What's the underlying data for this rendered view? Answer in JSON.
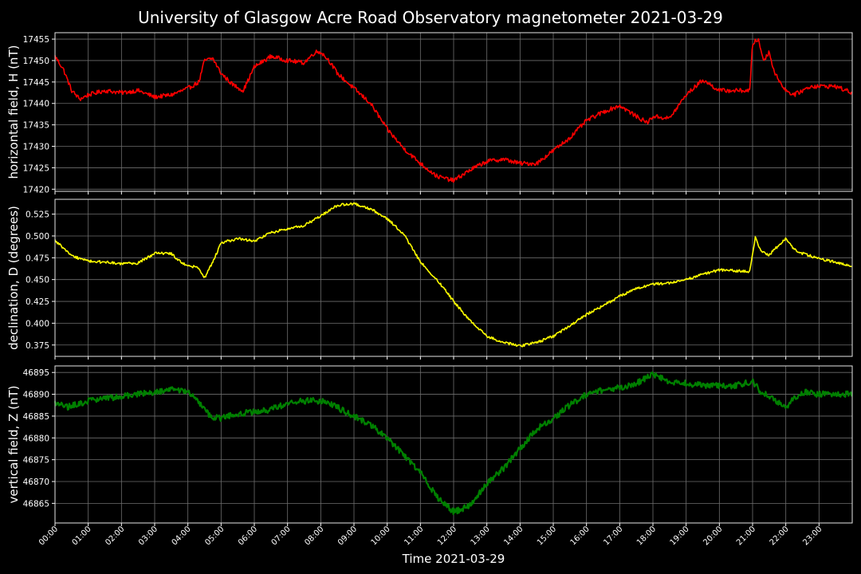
{
  "chart_data": {
    "title": "University of Glasgow Acre Road Observatory magnetometer 2021-03-29",
    "xlabel": "Time 2021-03-29",
    "x_ticks": [
      "00:00",
      "01:00",
      "02:00",
      "03:00",
      "04:00",
      "05:00",
      "06:00",
      "07:00",
      "08:00",
      "09:00",
      "10:00",
      "11:00",
      "12:00",
      "13:00",
      "14:00",
      "15:00",
      "16:00",
      "17:00",
      "18:00",
      "19:00",
      "20:00",
      "21:00",
      "22:00",
      "23:00"
    ],
    "xlim": [
      "00:00",
      "24:00"
    ],
    "grid": true,
    "panels": [
      {
        "type": "line",
        "ylabel": "horizontal field, H (nT)",
        "color": "#ff0000",
        "ylim": [
          17419.5,
          17456.5
        ],
        "yticks": [
          17420,
          17425,
          17430,
          17435,
          17440,
          17445,
          17450,
          17455
        ],
        "noise": 0.5,
        "x": [
          "00:00",
          "00:15",
          "00:30",
          "00:45",
          "01:00",
          "01:30",
          "02:00",
          "02:30",
          "03:00",
          "03:30",
          "04:00",
          "04:20",
          "04:30",
          "04:45",
          "05:00",
          "05:20",
          "05:40",
          "06:00",
          "06:30",
          "07:00",
          "07:30",
          "07:50",
          "08:00",
          "08:15",
          "08:30",
          "09:00",
          "09:30",
          "10:00",
          "10:30",
          "11:00",
          "11:30",
          "12:00",
          "12:30",
          "13:00",
          "13:30",
          "14:00",
          "14:30",
          "15:00",
          "15:30",
          "16:00",
          "16:30",
          "17:00",
          "17:30",
          "17:50",
          "18:00",
          "18:30",
          "19:00",
          "19:30",
          "20:00",
          "20:30",
          "20:55",
          "21:00",
          "21:10",
          "21:20",
          "21:30",
          "21:40",
          "22:00",
          "22:15",
          "22:30",
          "22:45",
          "23:00",
          "23:30",
          "23:59"
        ],
        "y": [
          17451,
          17448,
          17443,
          17441,
          17442,
          17443,
          17442.5,
          17443,
          17441.5,
          17442,
          17443.5,
          17445,
          17450,
          17450.5,
          17447,
          17444.5,
          17443,
          17448.5,
          17451,
          17450,
          17449.5,
          17452,
          17452,
          17450,
          17447,
          17443.5,
          17440,
          17434,
          17429.5,
          17426,
          17423,
          17422,
          17424.5,
          17426.5,
          17427,
          17426,
          17426,
          17429,
          17432,
          17436,
          17438,
          17439.5,
          17437,
          17435.5,
          17437,
          17436.5,
          17442,
          17445.5,
          17443,
          17443,
          17443,
          17454,
          17455,
          17450,
          17452,
          17447,
          17443,
          17442,
          17443,
          17444,
          17444,
          17444,
          17442.5
        ]
      },
      {
        "type": "line",
        "ylabel": "declination, D (degrees)",
        "color": "#ffff00",
        "ylim": [
          0.362,
          0.542
        ],
        "yticks": [
          0.375,
          0.4,
          0.425,
          0.45,
          0.475,
          0.5,
          0.525
        ],
        "noise": 0.0015,
        "x": [
          "00:00",
          "00:30",
          "01:00",
          "01:30",
          "02:00",
          "02:30",
          "03:00",
          "03:30",
          "03:45",
          "04:00",
          "04:15",
          "04:20",
          "04:30",
          "04:45",
          "05:00",
          "05:30",
          "06:00",
          "06:30",
          "07:00",
          "07:30",
          "08:00",
          "08:30",
          "09:00",
          "09:30",
          "10:00",
          "10:30",
          "11:00",
          "11:30",
          "12:00",
          "12:30",
          "13:00",
          "13:30",
          "14:00",
          "14:30",
          "15:00",
          "15:30",
          "16:00",
          "16:30",
          "17:00",
          "17:30",
          "18:00",
          "18:30",
          "19:00",
          "19:30",
          "20:00",
          "20:30",
          "20:55",
          "21:05",
          "21:15",
          "21:30",
          "21:45",
          "22:00",
          "22:15",
          "22:30",
          "23:00",
          "23:30",
          "23:59"
        ],
        "y": [
          0.495,
          0.477,
          0.471,
          0.47,
          0.468,
          0.469,
          0.48,
          0.48,
          0.471,
          0.465,
          0.465,
          0.462,
          0.452,
          0.47,
          0.492,
          0.497,
          0.494,
          0.504,
          0.508,
          0.512,
          0.523,
          0.535,
          0.537,
          0.531,
          0.52,
          0.502,
          0.47,
          0.45,
          0.425,
          0.403,
          0.385,
          0.378,
          0.374,
          0.378,
          0.385,
          0.397,
          0.41,
          0.42,
          0.431,
          0.44,
          0.445,
          0.446,
          0.45,
          0.456,
          0.461,
          0.46,
          0.459,
          0.499,
          0.482,
          0.478,
          0.488,
          0.497,
          0.485,
          0.48,
          0.474,
          0.47,
          0.465
        ]
      },
      {
        "type": "line",
        "ylabel": "vertical field, Z (nT)",
        "color": "#008000",
        "ylim": [
          46860.5,
          46896.5
        ],
        "yticks": [
          46865,
          46870,
          46875,
          46880,
          46885,
          46890,
          46895
        ],
        "noise": 0.7,
        "x": [
          "00:00",
          "00:20",
          "01:00",
          "01:30",
          "02:00",
          "02:30",
          "03:00",
          "03:30",
          "04:00",
          "04:20",
          "04:40",
          "05:00",
          "05:30",
          "06:00",
          "06:30",
          "07:00",
          "07:30",
          "08:00",
          "08:30",
          "09:00",
          "09:30",
          "10:00",
          "10:30",
          "11:00",
          "11:30",
          "12:00",
          "12:30",
          "13:00",
          "13:30",
          "14:00",
          "14:30",
          "15:00",
          "15:30",
          "16:00",
          "16:30",
          "17:00",
          "17:30",
          "18:00",
          "18:30",
          "19:00",
          "19:30",
          "20:00",
          "20:30",
          "21:00",
          "21:15",
          "21:30",
          "22:00",
          "22:15",
          "22:30",
          "23:00",
          "23:30",
          "23:59"
        ],
        "y": [
          46888,
          46887,
          46888.5,
          46889,
          46889.5,
          46890,
          46890.5,
          46891,
          46890.5,
          46888,
          46885,
          46884.5,
          46885.5,
          46886,
          46886.5,
          46888,
          46888.5,
          46888.5,
          46887,
          46885,
          46883,
          46880,
          46876,
          46872,
          46866.5,
          46863,
          46864.5,
          46869.5,
          46873,
          46877.5,
          46882,
          46884.5,
          46887.5,
          46890,
          46891,
          46891.5,
          46892.5,
          46894.5,
          46893,
          46892.5,
          46892,
          46892,
          46892,
          46893,
          46890.5,
          46889.5,
          46887,
          46889,
          46890.5,
          46890,
          46890,
          46890
        ]
      }
    ]
  }
}
